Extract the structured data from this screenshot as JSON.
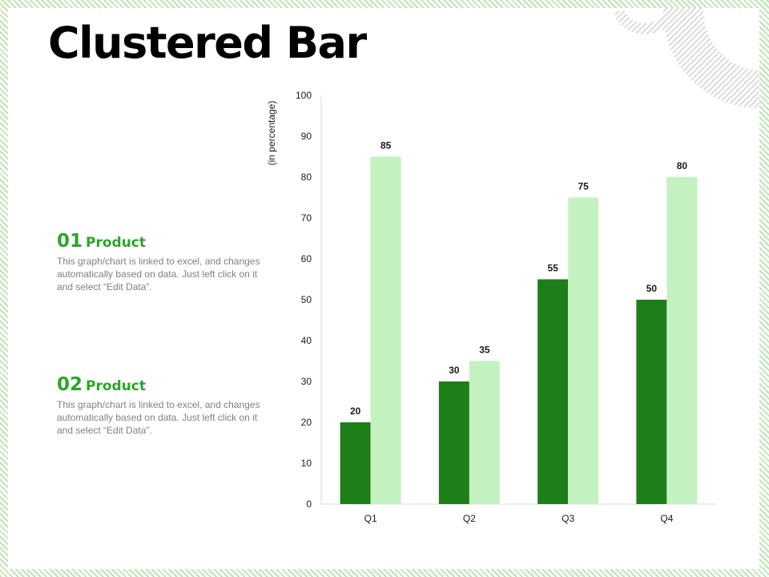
{
  "slide": {
    "title": "Clustered Bar",
    "products": [
      {
        "number": "01",
        "name": "Product",
        "description": "This graph/chart is linked to excel, and changes automatically based on data. Just left click on it and select “Edit Data”."
      },
      {
        "number": "02",
        "name": "Product",
        "description": "This graph/chart is linked to excel, and changes automatically based on data. Just left click on it and select “Edit Data”."
      }
    ]
  },
  "colors": {
    "series_dark": "#1e7e19",
    "series_light": "#c4f1c0",
    "accent_text": "#2aa629",
    "frame_stripe": "#bfe4b3"
  },
  "chart_data": {
    "type": "bar",
    "categories": [
      "Q1",
      "Q2",
      "Q3",
      "Q4"
    ],
    "series": [
      {
        "values": [
          20,
          30,
          55,
          50
        ],
        "color": "#1e7e19"
      },
      {
        "values": [
          85,
          35,
          75,
          80
        ],
        "color": "#c4f1c0"
      }
    ],
    "ylabel": "(in percentage)",
    "ylim": [
      0,
      100
    ],
    "yticks": [
      0,
      10,
      20,
      30,
      40,
      50,
      60,
      70,
      80,
      90,
      100
    ],
    "data_labels": true,
    "grid": false,
    "legend": "none"
  }
}
